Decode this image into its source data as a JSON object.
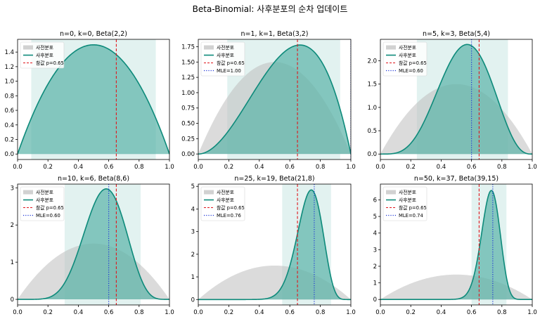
{
  "figure": {
    "title": "Beta-Binomial: 사후분포의 순차 업데이트"
  },
  "style": {
    "prior_color": "#bdbdbd",
    "posterior_color": "#0d8a7a",
    "posterior_fill": "#5bb3a8",
    "ci_band_color": "#bfe3de",
    "true_p_color": "#e0161c",
    "mle_color": "#1f35d6"
  },
  "legend": {
    "prior": "사전분포",
    "posterior": "사후분포",
    "true_p": "참값 p=0.65"
  },
  "chart_data": [
    {
      "type": "area",
      "title": "n=0, k=0, Beta(2,2)",
      "n": 0,
      "k": 0,
      "alpha": 2,
      "beta": 2,
      "prior": [
        2,
        2
      ],
      "true_p": 0.65,
      "mle": null,
      "ci": [
        0.09,
        0.91
      ],
      "xlim": [
        0,
        1
      ],
      "ylim": [
        -0.075,
        1.575
      ],
      "xticks": [
        "0.0",
        "0.2",
        "0.4",
        "0.6",
        "0.8",
        "1.0"
      ],
      "yticks": [
        "0.0",
        "0.2",
        "0.4",
        "0.6",
        "0.8",
        "1.0",
        "1.2",
        "1.4"
      ],
      "legend_labels": [
        "사전분포",
        "사후분포",
        "참값 p=0.65"
      ],
      "legend": "top-left"
    },
    {
      "type": "area",
      "title": "n=1, k=1, Beta(3,2)",
      "n": 1,
      "k": 1,
      "alpha": 3,
      "beta": 2,
      "prior": [
        2,
        2
      ],
      "true_p": 0.65,
      "mle": 1.0,
      "ci": [
        0.19,
        0.93
      ],
      "xlim": [
        0,
        1
      ],
      "ylim": [
        -0.09,
        1.87
      ],
      "xticks": [
        "0.0",
        "0.2",
        "0.4",
        "0.6",
        "0.8",
        "1.0"
      ],
      "yticks": [
        "0.00",
        "0.25",
        "0.50",
        "0.75",
        "1.00",
        "1.25",
        "1.50",
        "1.75"
      ],
      "legend_labels": [
        "사전분포",
        "사후분포",
        "참값 p=0.65",
        "MLE=1.00"
      ],
      "legend": "top-left"
    },
    {
      "type": "area",
      "title": "n=5, k=3, Beta(5,4)",
      "n": 5,
      "k": 3,
      "alpha": 5,
      "beta": 4,
      "prior": [
        2,
        2
      ],
      "true_p": 0.65,
      "mle": 0.6,
      "ci": [
        0.24,
        0.84
      ],
      "xlim": [
        0,
        1
      ],
      "ylim": [
        -0.117,
        2.46
      ],
      "xticks": [
        "0.0",
        "0.2",
        "0.4",
        "0.6",
        "0.8",
        "1.0"
      ],
      "yticks": [
        "0.0",
        "0.5",
        "1.0",
        "1.5",
        "2.0"
      ],
      "legend_labels": [
        "사전분포",
        "사후분포",
        "참값 p=0.65",
        "MLE=0.60"
      ],
      "legend": "top-left"
    },
    {
      "type": "area",
      "title": "n=10, k=6, Beta(8,6)",
      "n": 10,
      "k": 6,
      "alpha": 8,
      "beta": 6,
      "prior": [
        2,
        2
      ],
      "true_p": 0.65,
      "mle": 0.6,
      "ci": [
        0.31,
        0.81
      ],
      "xlim": [
        0,
        1
      ],
      "ylim": [
        -0.15,
        3.1
      ],
      "xticks": [
        "0.0",
        "0.2",
        "0.4",
        "0.6",
        "0.8",
        "1.0"
      ],
      "yticks": [
        "0",
        "1",
        "2",
        "3"
      ],
      "legend_labels": [
        "사전분포",
        "사후분포",
        "참값 p=0.65",
        "MLE=0.60"
      ],
      "legend": "top-left"
    },
    {
      "type": "area",
      "title": "n=25, k=19, Beta(21,8)",
      "n": 25,
      "k": 19,
      "alpha": 21,
      "beta": 8,
      "prior": [
        2,
        2
      ],
      "true_p": 0.65,
      "mle": 0.76,
      "ci": [
        0.55,
        0.87
      ],
      "xlim": [
        0,
        1
      ],
      "ylim": [
        -0.24,
        5.1
      ],
      "xticks": [
        "0.0",
        "0.2",
        "0.4",
        "0.6",
        "0.8",
        "1.0"
      ],
      "yticks": [
        "0",
        "1",
        "2",
        "3",
        "4",
        "5"
      ],
      "legend_labels": [
        "사전분포",
        "사후분포",
        "참값 p=0.65",
        "MLE=0.76"
      ],
      "legend": "top-left"
    },
    {
      "type": "area",
      "title": "n=50, k=37, Beta(39,15)",
      "n": 50,
      "k": 37,
      "alpha": 39,
      "beta": 15,
      "prior": [
        2,
        2
      ],
      "true_p": 0.65,
      "mle": 0.74,
      "ci": [
        0.6,
        0.83
      ],
      "xlim": [
        0,
        1
      ],
      "ylim": [
        -0.33,
        6.95
      ],
      "xticks": [
        "0.0",
        "0.2",
        "0.4",
        "0.6",
        "0.8",
        "1.0"
      ],
      "yticks": [
        "0",
        "1",
        "2",
        "3",
        "4",
        "5",
        "6"
      ],
      "legend_labels": [
        "사전분포",
        "사후분포",
        "참값 p=0.65",
        "MLE=0.74"
      ],
      "legend": "top-left"
    }
  ]
}
